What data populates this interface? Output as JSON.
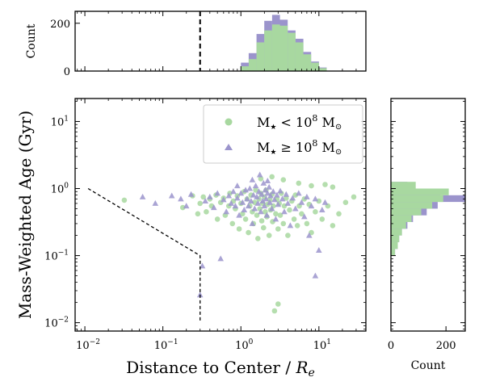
{
  "chart_data": {
    "type": "scatter",
    "colors": {
      "low_mass": "#a8d8a0",
      "high_mass": "#9b94cc",
      "dashed": "#000000"
    },
    "main": {
      "xlabel": "Distance to Center / R_e",
      "ylabel": "Mass-Weighted Age (Gyr)",
      "xscale": "log",
      "yscale": "log",
      "xlim": [
        0.0075,
        40
      ],
      "ylim": [
        0.0075,
        22
      ],
      "x_ticks": [
        "10^{-2}",
        "10^{-1}",
        "10^{0}",
        "10^{1}"
      ],
      "y_ticks": [
        "10^{-2}",
        "10^{-1}",
        "10^{0}",
        "10^{1}"
      ],
      "legend_position": "top-right",
      "series": [
        {
          "name": "M★ < 10⁸ M⊙",
          "marker": "circle",
          "points": [
            [
              0.032,
              0.67
            ],
            [
              0.18,
              0.52
            ],
            [
              0.24,
              0.78
            ],
            [
              0.28,
              0.42
            ],
            [
              0.3,
              0.6
            ],
            [
              0.33,
              0.75
            ],
            [
              0.36,
              0.45
            ],
            [
              0.4,
              0.7
            ],
            [
              0.42,
              0.55
            ],
            [
              0.48,
              0.8
            ],
            [
              0.5,
              0.35
            ],
            [
              0.55,
              0.62
            ],
            [
              0.6,
              0.72
            ],
            [
              0.63,
              0.4
            ],
            [
              0.7,
              0.55
            ],
            [
              0.72,
              0.85
            ],
            [
              0.78,
              0.3
            ],
            [
              0.8,
              0.65
            ],
            [
              0.85,
              0.5
            ],
            [
              0.9,
              0.78
            ],
            [
              0.95,
              0.25
            ],
            [
              1.0,
              0.6
            ],
            [
              1.05,
              0.42
            ],
            [
              1.1,
              0.9
            ],
            [
              1.15,
              0.35
            ],
            [
              1.2,
              0.7
            ],
            [
              1.25,
              0.22
            ],
            [
              1.3,
              0.55
            ],
            [
              1.35,
              0.8
            ],
            [
              1.4,
              0.45
            ],
            [
              1.45,
              0.3
            ],
            [
              1.5,
              0.62
            ],
            [
              1.55,
              0.95
            ],
            [
              1.6,
              0.4
            ],
            [
              1.65,
              0.18
            ],
            [
              1.7,
              0.7
            ],
            [
              1.75,
              0.5
            ],
            [
              1.8,
              0.85
            ],
            [
              1.85,
              0.33
            ],
            [
              1.9,
              0.6
            ],
            [
              1.95,
              0.26
            ],
            [
              2.0,
              0.75
            ],
            [
              2.05,
              0.45
            ],
            [
              2.1,
              0.95
            ],
            [
              2.15,
              0.38
            ],
            [
              2.2,
              0.58
            ],
            [
              2.3,
              0.2
            ],
            [
              2.35,
              0.68
            ],
            [
              2.4,
              0.48
            ],
            [
              2.5,
              0.82
            ],
            [
              2.55,
              0.32
            ],
            [
              2.6,
              0.55
            ],
            [
              2.7,
              0.015
            ],
            [
              2.8,
              0.42
            ],
            [
              2.9,
              0.7
            ],
            [
              3.0,
              0.25
            ],
            [
              3.1,
              0.6
            ],
            [
              3.2,
              0.4
            ],
            [
              3.3,
              0.85
            ],
            [
              3.5,
              0.3
            ],
            [
              3.6,
              0.55
            ],
            [
              3.8,
              0.72
            ],
            [
              4.0,
              0.2
            ],
            [
              4.2,
              0.48
            ],
            [
              4.5,
              0.65
            ],
            [
              4.8,
              0.35
            ],
            [
              5.0,
              0.8
            ],
            [
              5.3,
              0.28
            ],
            [
              5.6,
              0.55
            ],
            [
              6.0,
              0.42
            ],
            [
              6.5,
              0.7
            ],
            [
              7.0,
              0.3
            ],
            [
              7.5,
              0.58
            ],
            [
              8.0,
              0.22
            ],
            [
              9.0,
              0.45
            ],
            [
              10.0,
              0.65
            ],
            [
              11.0,
              0.35
            ],
            [
              13.0,
              0.55
            ],
            [
              15.0,
              0.28
            ],
            [
              18.0,
              0.42
            ],
            [
              22.0,
              0.62
            ],
            [
              28.0,
              0.75
            ],
            [
              3.0,
              0.019
            ],
            [
              2.5,
              1.5
            ],
            [
              3.5,
              1.35
            ],
            [
              1.8,
              1.4
            ],
            [
              5.5,
              1.2
            ],
            [
              8.0,
              1.1
            ],
            [
              15.0,
              1.05
            ],
            [
              12.0,
              1.15
            ]
          ]
        },
        {
          "name": "M★ ≥ 10⁸ M⊙",
          "marker": "triangle",
          "points": [
            [
              0.055,
              0.75
            ],
            [
              0.08,
              0.6
            ],
            [
              0.13,
              0.78
            ],
            [
              0.17,
              0.7
            ],
            [
              0.2,
              0.55
            ],
            [
              0.23,
              0.82
            ],
            [
              0.3,
              0.026
            ],
            [
              0.35,
              0.65
            ],
            [
              0.4,
              0.75
            ],
            [
              0.45,
              0.52
            ],
            [
              0.5,
              0.85
            ],
            [
              0.6,
              0.68
            ],
            [
              0.65,
              0.45
            ],
            [
              0.7,
              0.78
            ],
            [
              0.75,
              0.6
            ],
            [
              0.8,
              0.9
            ],
            [
              0.85,
              0.55
            ],
            [
              0.9,
              0.72
            ],
            [
              0.95,
              0.4
            ],
            [
              1.0,
              0.85
            ],
            [
              1.05,
              0.62
            ],
            [
              1.1,
              0.48
            ],
            [
              1.15,
              0.95
            ],
            [
              1.2,
              0.7
            ],
            [
              1.25,
              0.55
            ],
            [
              1.3,
              1.0
            ],
            [
              1.35,
              0.65
            ],
            [
              1.4,
              0.3
            ],
            [
              1.45,
              0.8
            ],
            [
              1.5,
              0.5
            ],
            [
              1.55,
              1.1
            ],
            [
              1.6,
              0.75
            ],
            [
              1.65,
              0.6
            ],
            [
              1.7,
              0.9
            ],
            [
              1.75,
              1.6
            ],
            [
              1.8,
              0.45
            ],
            [
              1.85,
              0.82
            ],
            [
              1.9,
              0.65
            ],
            [
              1.95,
              1.2
            ],
            [
              2.0,
              0.55
            ],
            [
              2.05,
              0.95
            ],
            [
              2.1,
              0.7
            ],
            [
              2.15,
              0.4
            ],
            [
              2.2,
              0.85
            ],
            [
              2.3,
              1.05
            ],
            [
              2.35,
              0.62
            ],
            [
              2.4,
              0.78
            ],
            [
              2.5,
              0.5
            ],
            [
              2.6,
              0.9
            ],
            [
              2.7,
              0.68
            ],
            [
              2.8,
              0.35
            ],
            [
              2.9,
              0.8
            ],
            [
              3.0,
              0.58
            ],
            [
              3.2,
              0.92
            ],
            [
              3.4,
              0.7
            ],
            [
              3.6,
              0.45
            ],
            [
              3.8,
              0.82
            ],
            [
              4.0,
              0.6
            ],
            [
              4.3,
              0.28
            ],
            [
              4.6,
              0.72
            ],
            [
              5.0,
              0.5
            ],
            [
              5.5,
              0.85
            ],
            [
              6.0,
              0.62
            ],
            [
              6.5,
              0.38
            ],
            [
              7.0,
              0.75
            ],
            [
              7.5,
              0.2
            ],
            [
              8.0,
              0.55
            ],
            [
              9.0,
              0.7
            ],
            [
              10.0,
              0.12
            ],
            [
              11.0,
              0.48
            ],
            [
              12.0,
              0.62
            ],
            [
              0.32,
              0.07
            ],
            [
              0.55,
              0.09
            ],
            [
              9.0,
              0.05
            ],
            [
              1.4,
              1.35
            ],
            [
              2.2,
              1.3
            ],
            [
              0.9,
              1.1
            ]
          ]
        }
      ]
    },
    "top_hist": {
      "ylabel": "Count",
      "y_ticks": [
        "0",
        "200"
      ],
      "ylim": [
        0,
        250
      ],
      "bin_edges_log10": [
        0.0,
        0.1,
        0.2,
        0.3,
        0.4,
        0.5,
        0.6,
        0.7,
        0.8,
        0.9,
        1.0,
        1.1
      ],
      "low_mass_counts": [
        20,
        50,
        120,
        170,
        195,
        190,
        160,
        120,
        70,
        35,
        12
      ],
      "high_mass_counts": [
        35,
        75,
        155,
        210,
        235,
        215,
        170,
        135,
        80,
        40,
        15
      ]
    },
    "right_hist": {
      "xlabel": "Count",
      "x_ticks": [
        "0",
        "200"
      ],
      "xlim": [
        0,
        270
      ],
      "bin_edges_log10": [
        -1.0,
        -0.9,
        -0.8,
        -0.7,
        -0.6,
        -0.5,
        -0.4,
        -0.3,
        -0.2,
        -0.1,
        0.0,
        0.1
      ],
      "low_mass_counts": [
        15,
        25,
        30,
        40,
        55,
        75,
        110,
        150,
        190,
        210,
        90
      ],
      "high_mass_counts": [
        15,
        25,
        30,
        40,
        60,
        80,
        130,
        170,
        270,
        180,
        60
      ]
    }
  }
}
